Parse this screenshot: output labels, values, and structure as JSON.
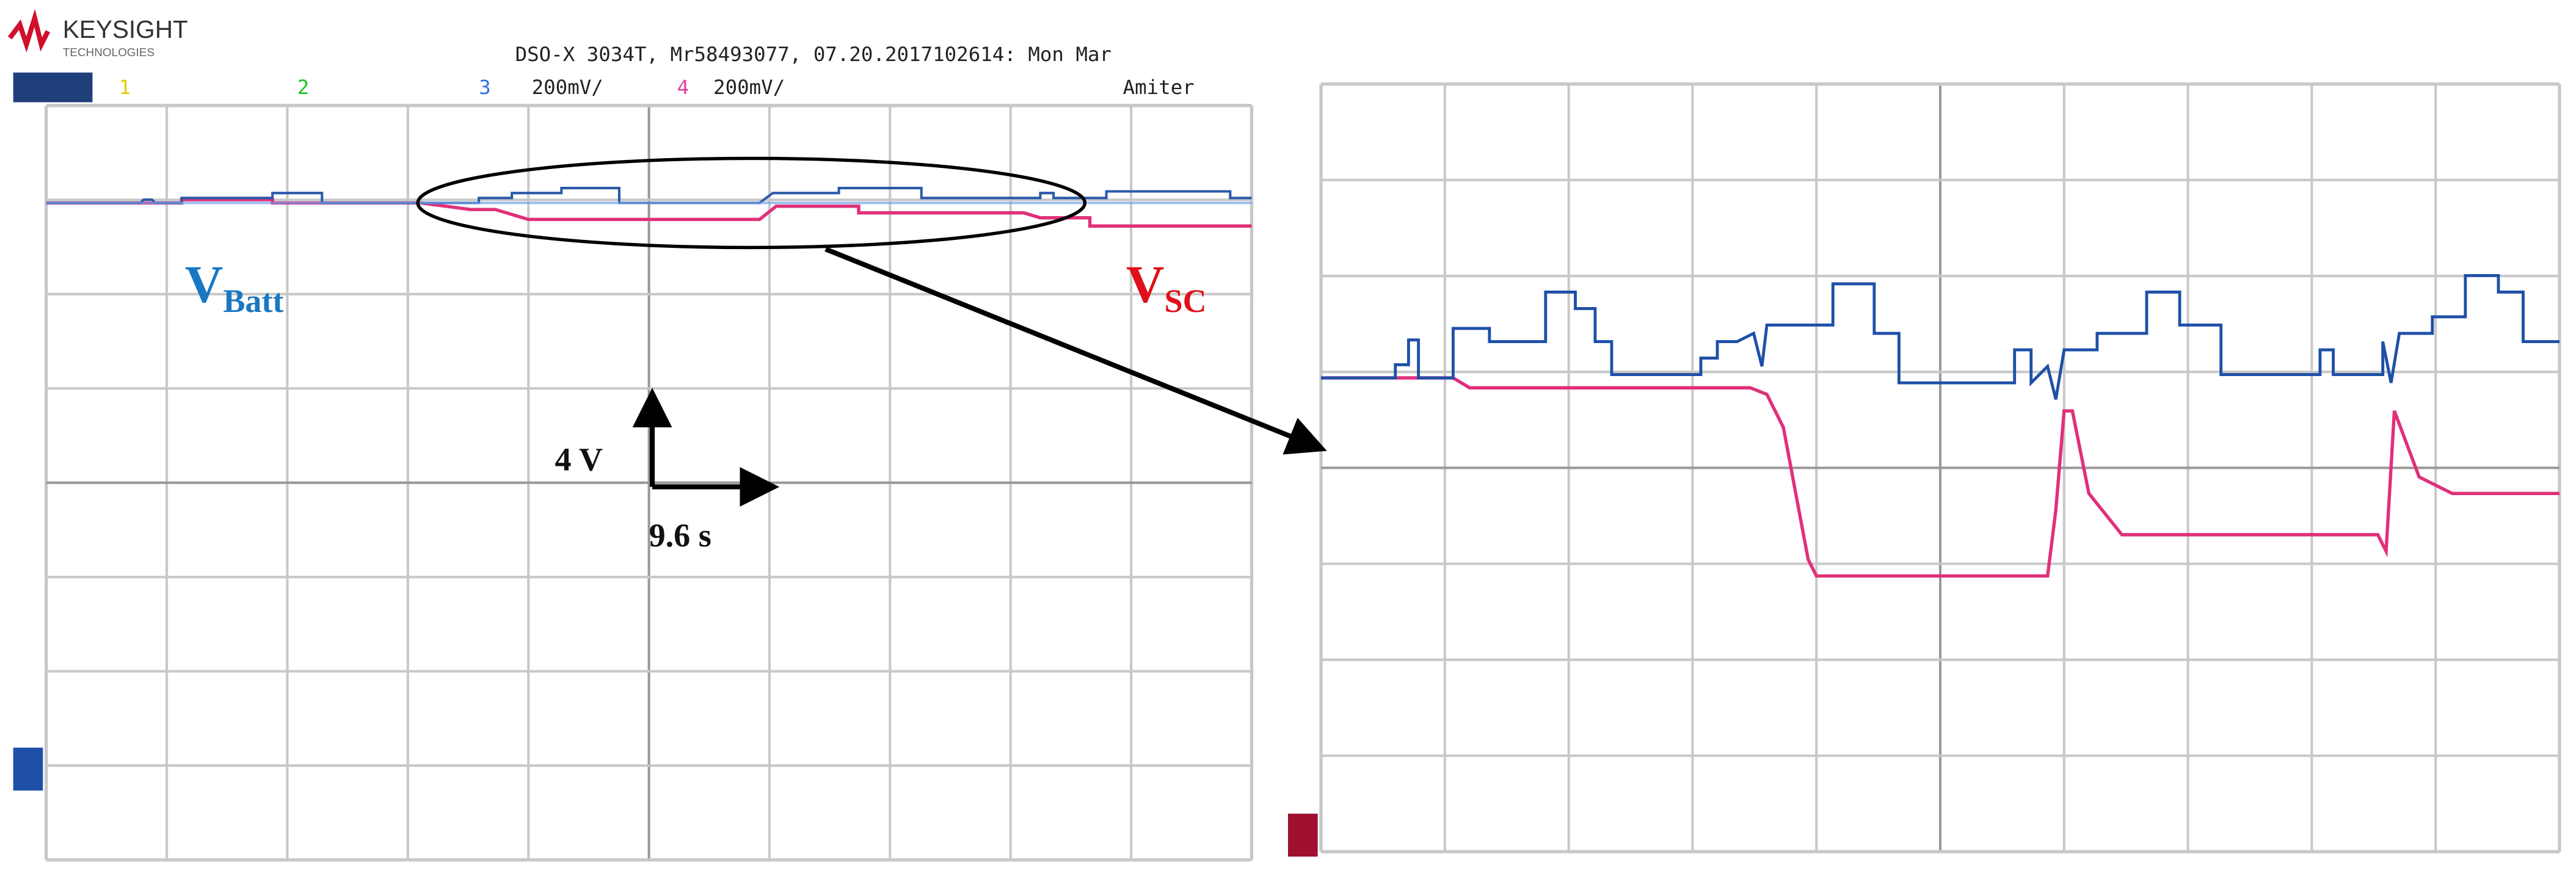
{
  "header": {
    "brand": "KEYSIGHT",
    "brand_sub": "TECHNOLOGIES",
    "info": "DSO-X 3034T, Mr58493077, 07.20.2017102614: Mon Mar"
  },
  "channels": [
    {
      "number": "1"
    },
    {
      "number": "2"
    },
    {
      "number": "3",
      "scale": "200mV/"
    },
    {
      "number": "4",
      "scale": "200mV/"
    }
  ],
  "mode": "Amiter",
  "annotations": {
    "vbatt": {
      "symbol": "V",
      "subscript": "Batt"
    },
    "vsc": {
      "symbol": "V",
      "subscript": "SC"
    },
    "vertical_scale": "4 V",
    "horizontal_scale": "9.6 s"
  }
}
